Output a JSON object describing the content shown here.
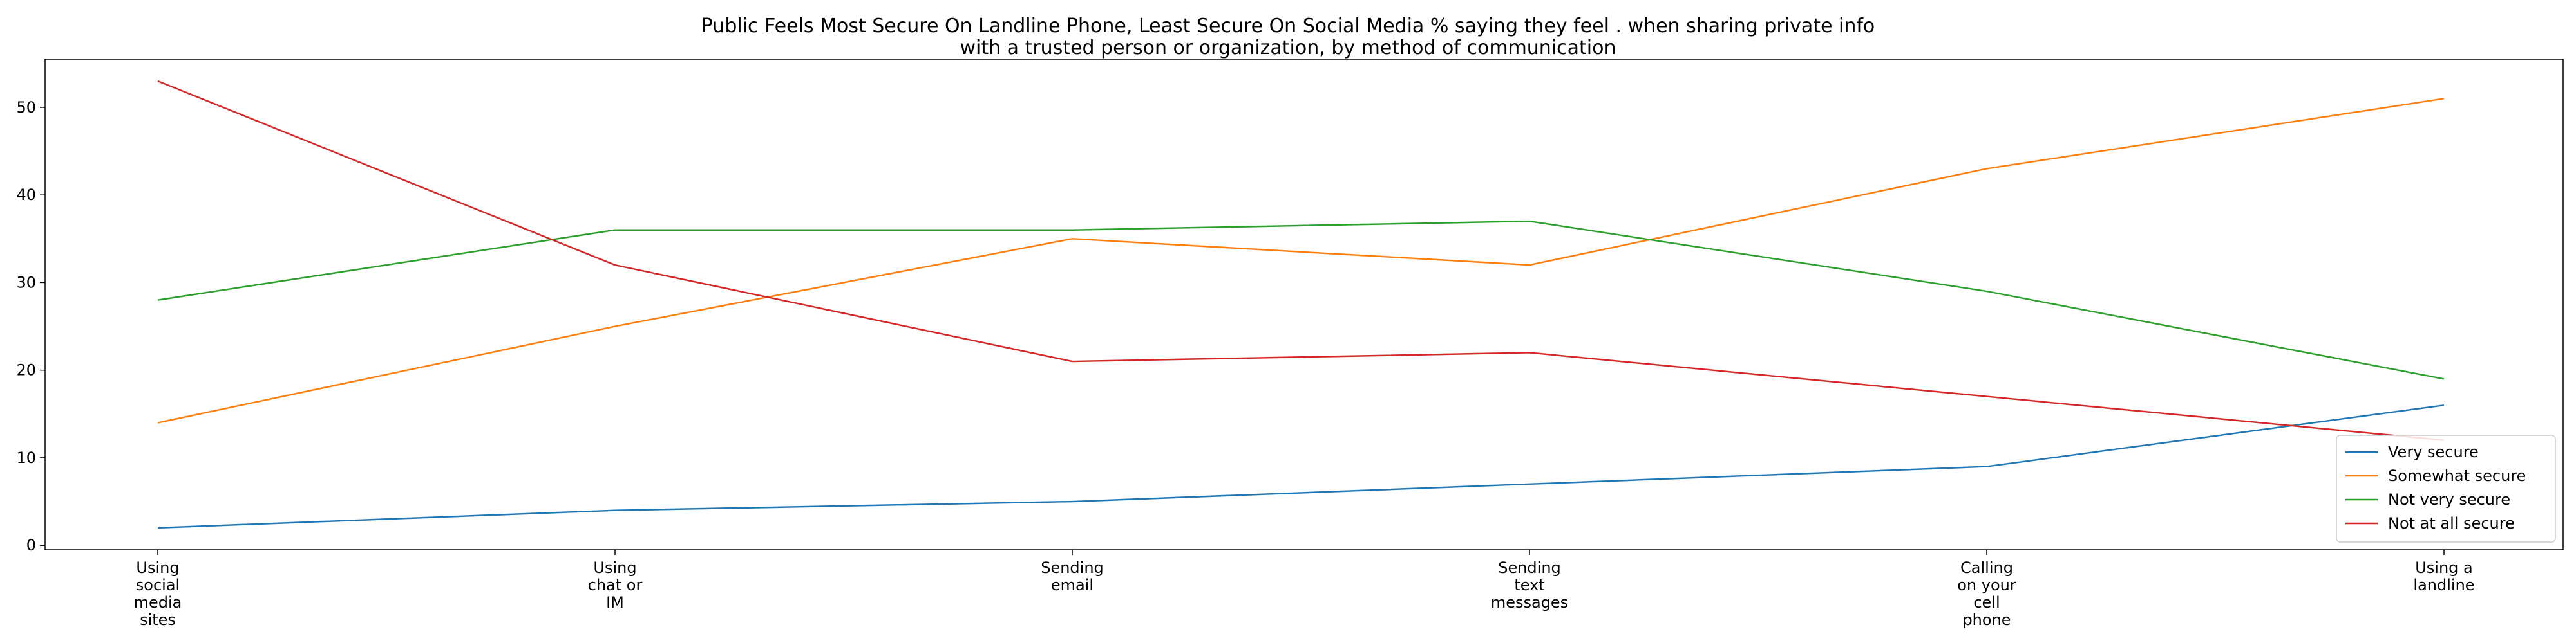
{
  "chart_data": {
    "type": "line",
    "title_lines": [
      "Public Feels Most Secure On Landline Phone, Least Secure On Social Media % saying they feel . when sharing private info",
      "with a trusted person or organization, by method of communication"
    ],
    "categories": [
      [
        "Using",
        "social",
        "media",
        "sites"
      ],
      [
        "Using",
        "chat or",
        "IM"
      ],
      [
        "Sending",
        "email"
      ],
      [
        "Sending",
        "text",
        "messages"
      ],
      [
        "Calling",
        "on your",
        "cell",
        "phone"
      ],
      [
        "Using a",
        "landline"
      ]
    ],
    "series": [
      {
        "name": "Very secure",
        "color": "#1f77b4",
        "values": [
          2,
          4,
          5,
          7,
          9,
          16
        ]
      },
      {
        "name": "Somewhat secure",
        "color": "#ff7f0e",
        "values": [
          14,
          25,
          35,
          32,
          43,
          51
        ]
      },
      {
        "name": "Not very secure",
        "color": "#2ca02c",
        "values": [
          28,
          36,
          36,
          37,
          29,
          19
        ]
      },
      {
        "name": "Not at all secure",
        "color": "#d62728",
        "values": [
          53,
          32,
          21,
          22,
          17,
          12
        ]
      }
    ],
    "yticks": [
      0,
      10,
      20,
      30,
      40,
      50
    ],
    "ylim": [
      -0.5,
      55.5
    ],
    "grid": false,
    "legend_position": "lower-right"
  }
}
